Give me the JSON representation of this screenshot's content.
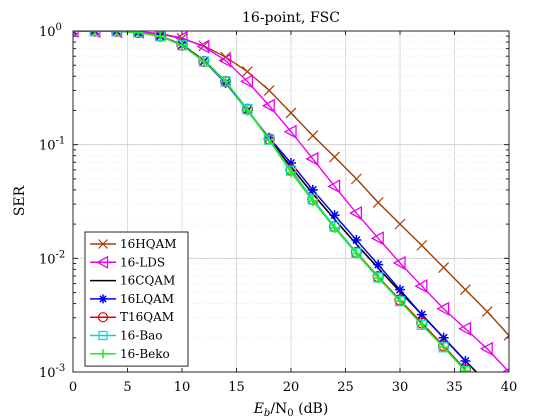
{
  "chart_data": {
    "type": "line",
    "title": "16-point, FSC",
    "xlabel_main": "E",
    "xlabel_sub": "b",
    "xlabel_mid": "/N",
    "xlabel_sub2": "0",
    "xlabel_unit": " (dB)",
    "ylabel": "SER",
    "xlim": [
      0,
      40
    ],
    "ylim": [
      0.001,
      1
    ],
    "yscale": "log",
    "grid": true,
    "legend_position": "bottom-left",
    "x_ticks": [
      "0",
      "5",
      "10",
      "15",
      "20",
      "25",
      "30",
      "35",
      "40"
    ],
    "y_ticks": [
      {
        "base": "10",
        "exp": "0"
      },
      {
        "base": "10",
        "exp": "-1"
      },
      {
        "base": "10",
        "exp": "-2"
      },
      {
        "base": "10",
        "exp": "-3"
      }
    ],
    "series": [
      {
        "name": "16HQAM",
        "color": "#a0400a",
        "marker": "x",
        "x": [
          0,
          2,
          4,
          6,
          8,
          10,
          12,
          14,
          16,
          18,
          20,
          22,
          24,
          26,
          28,
          30,
          32,
          34,
          36,
          38,
          40
        ],
        "y": [
          1.0,
          0.999,
          0.995,
          0.98,
          0.94,
          0.86,
          0.74,
          0.59,
          0.44,
          0.3,
          0.19,
          0.12,
          0.078,
          0.05,
          0.031,
          0.02,
          0.013,
          0.0083,
          0.0053,
          0.0034,
          0.0021
        ]
      },
      {
        "name": "16-LDS",
        "color": "#ee00ee",
        "marker": "triangle-left",
        "x": [
          0,
          2,
          4,
          6,
          8,
          10,
          12,
          14,
          16,
          18,
          20,
          22,
          24,
          26,
          28,
          30,
          32,
          34,
          36,
          38,
          40
        ],
        "y": [
          1.0,
          0.999,
          0.997,
          0.985,
          0.95,
          0.87,
          0.73,
          0.55,
          0.36,
          0.22,
          0.13,
          0.075,
          0.043,
          0.025,
          0.015,
          0.0091,
          0.0057,
          0.0036,
          0.0024,
          0.0016,
          0.001
        ]
      },
      {
        "name": "16CQAM",
        "color": "#000000",
        "marker": "none",
        "x": [
          0,
          2,
          4,
          6,
          8,
          10,
          12,
          14,
          16,
          18,
          20,
          22,
          24,
          26,
          28,
          30,
          32,
          34,
          36,
          38
        ],
        "y": [
          1.0,
          0.999,
          0.995,
          0.97,
          0.9,
          0.76,
          0.55,
          0.36,
          0.2,
          0.112,
          0.064,
          0.037,
          0.022,
          0.0133,
          0.0082,
          0.0051,
          0.0032,
          0.002,
          0.00125,
          0.0008
        ]
      },
      {
        "name": "16LQAM",
        "color": "#0000ee",
        "marker": "asterisk",
        "x": [
          0,
          2,
          4,
          6,
          8,
          10,
          12,
          14,
          16,
          18,
          20,
          22,
          24,
          26,
          28,
          30,
          32,
          34,
          36
        ],
        "y": [
          1.0,
          0.999,
          0.995,
          0.97,
          0.9,
          0.75,
          0.54,
          0.35,
          0.2,
          0.115,
          0.069,
          0.04,
          0.024,
          0.0145,
          0.0088,
          0.0053,
          0.0032,
          0.002,
          0.00125
        ]
      },
      {
        "name": "T16QAM",
        "color": "#e80000",
        "marker": "circle",
        "x": [
          0,
          2,
          4,
          6,
          8,
          10,
          12,
          14,
          16,
          18,
          20,
          22,
          24,
          26,
          28,
          30,
          32,
          34,
          36
        ],
        "y": [
          1.0,
          0.999,
          0.995,
          0.97,
          0.9,
          0.75,
          0.54,
          0.36,
          0.205,
          0.112,
          0.06,
          0.033,
          0.019,
          0.0113,
          0.0069,
          0.0043,
          0.0027,
          0.0017,
          0.00105
        ]
      },
      {
        "name": "16-Bao",
        "color": "#00d8d8",
        "marker": "square",
        "x": [
          0,
          2,
          4,
          6,
          8,
          10,
          12,
          14,
          16,
          18,
          20,
          22,
          24,
          26,
          28,
          30,
          32,
          34,
          36
        ],
        "y": [
          1.0,
          0.999,
          0.995,
          0.97,
          0.9,
          0.75,
          0.54,
          0.36,
          0.205,
          0.111,
          0.059,
          0.033,
          0.019,
          0.0112,
          0.0068,
          0.0042,
          0.0026,
          0.00165,
          0.00102
        ]
      },
      {
        "name": "16-Beko",
        "color": "#22ee22",
        "marker": "plus",
        "x": [
          0,
          2,
          4,
          6,
          8,
          10,
          12,
          14,
          16,
          18,
          20,
          22,
          24,
          26,
          28,
          30,
          32,
          34,
          36
        ],
        "y": [
          1.0,
          0.999,
          0.995,
          0.97,
          0.9,
          0.75,
          0.54,
          0.36,
          0.2,
          0.11,
          0.057,
          0.032,
          0.0185,
          0.011,
          0.0067,
          0.0042,
          0.0026,
          0.00165,
          0.00102
        ]
      }
    ]
  }
}
